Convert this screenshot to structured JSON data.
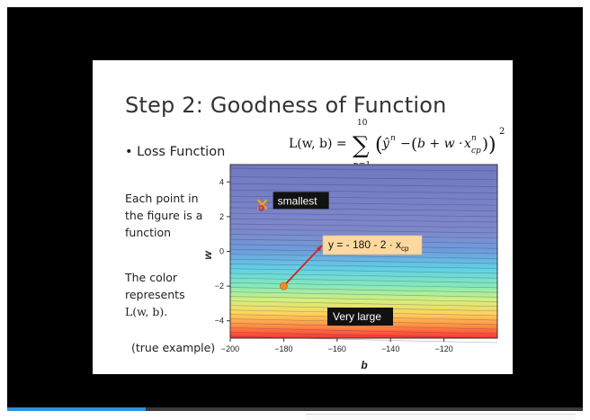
{
  "player": {
    "progress_fraction": 0.24
  },
  "slide": {
    "title": "Step 2: Goodness of Function",
    "bullet": "Loss Function",
    "formula": {
      "lhs": "L(w, b) =",
      "sum_upper": "10",
      "sum_lower": "n=1",
      "yhat": "ŷ",
      "n_sup": "n",
      "minus": "−",
      "b_plus_w": "b + w ·",
      "x": "x",
      "x_sup": "n",
      "x_sub": "cp",
      "square": "2"
    },
    "side_text": {
      "point_line1": "Each point in",
      "point_line2": "the figure is a",
      "point_line3": "function",
      "color_line1": "The color",
      "color_line2": "represents",
      "color_line3": "L(w, b)."
    },
    "true_example": "(true example)"
  },
  "chart_data": {
    "type": "heatmap",
    "xlabel": "b",
    "ylabel": "w",
    "xlim": [
      -200,
      -100
    ],
    "ylim": [
      -5,
      5
    ],
    "xticks": [
      "−200",
      "−180",
      "−160",
      "−140",
      "−120"
    ],
    "yticks": [
      "4",
      "2",
      "0",
      "−2",
      "−4"
    ],
    "colors": {
      "low": "#7d86c8",
      "mid": "#7fe6c2",
      "high": "#ff3a3a",
      "marker_orange": "#f28c28",
      "arrow_red": "#d62020",
      "callout_bg": "#fdd9a0"
    },
    "annotations": {
      "minimum_label": "smallest",
      "minimum_point": {
        "b": -188,
        "w": 2.7
      },
      "start_point": {
        "b": -180,
        "w": -2.0
      },
      "function_label_prefix": "y = - 180 - 2 · x",
      "function_label_sub": "cp",
      "large_label": "Very large"
    }
  }
}
